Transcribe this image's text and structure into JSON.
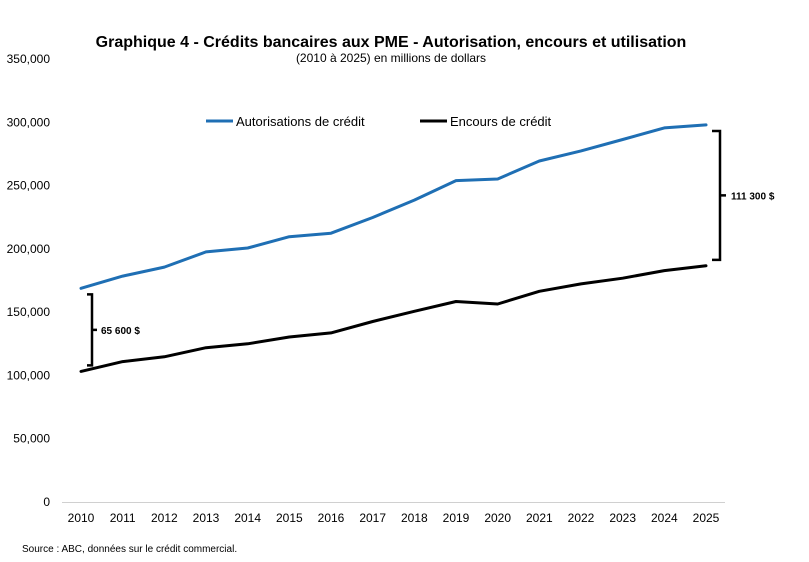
{
  "chart_data": {
    "type": "line",
    "title": "Graphique 4 - Crédits bancaires aux PME - Autorisation, encours et utilisation",
    "subtitle": "(2010  à 2025) en millions de dollars",
    "x": [
      "2010",
      "2011",
      "2012",
      "2013",
      "2014",
      "2015",
      "2016",
      "2017",
      "2018",
      "2019",
      "2020",
      "2021",
      "2022",
      "2023",
      "2024",
      "2025"
    ],
    "ylim": [
      0,
      350000
    ],
    "yticks": [
      0,
      50000,
      100000,
      150000,
      200000,
      250000,
      300000,
      350000
    ],
    "ytick_labels": [
      "0",
      "50,000",
      "100,000",
      "150,000",
      "200,000",
      "250,000",
      "300,000",
      "350,000"
    ],
    "grid": false,
    "legend_position": "top",
    "series": [
      {
        "name": "Autorisations de crédit",
        "color": "#1f6fb4",
        "values": [
          168800,
          178500,
          185600,
          197600,
          200700,
          209600,
          212400,
          224800,
          238500,
          253900,
          255200,
          269400,
          277400,
          286400,
          295600,
          297900
        ]
      },
      {
        "name": "Encours de crédit",
        "color": "#000000",
        "values": [
          103200,
          110900,
          114700,
          121900,
          125000,
          130400,
          133600,
          142600,
          150700,
          158400,
          156400,
          166500,
          172300,
          176800,
          182800,
          186600
        ]
      }
    ],
    "annotations": [
      {
        "label": "65 600 $",
        "year": "2010",
        "side": "left",
        "from": 103200,
        "to": 168800
      },
      {
        "label": "111 300 $",
        "year": "2025",
        "side": "right",
        "from": 186600,
        "to": 297900
      }
    ]
  },
  "source_note": "Source : ABC, données sur le crédit commercial."
}
